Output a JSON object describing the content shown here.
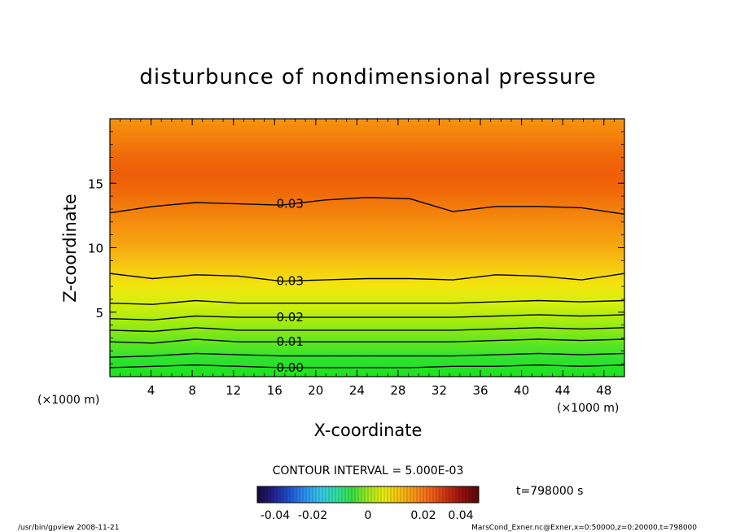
{
  "chart_data": {
    "type": "heatmap",
    "title": "disturbunce of nondimensional pressure",
    "xlabel": "X-coordinate",
    "ylabel": "Z-coordinate",
    "x_unit": "(×1000 m)",
    "y_unit": "(×1000 m)",
    "xlim": [
      0,
      50
    ],
    "ylim": [
      0,
      20
    ],
    "x_ticks": [
      4,
      8,
      12,
      16,
      20,
      24,
      28,
      32,
      36,
      40,
      44,
      48
    ],
    "y_ticks": [
      5,
      10,
      15
    ],
    "contour_interval_text": "CONTOUR INTERVAL = 5.000E-03",
    "contour_labels": [
      {
        "value": "0.00",
        "x": 17.5,
        "z": 0.7
      },
      {
        "value": "0.01",
        "x": 17.5,
        "z": 2.7
      },
      {
        "value": "0.02",
        "x": 17.5,
        "z": 4.6
      },
      {
        "value": "0.03",
        "x": 17.5,
        "z": 7.4
      },
      {
        "value": "0.03",
        "x": 17.5,
        "z": 13.4
      }
    ],
    "contour_lines": [
      {
        "level": 0.0,
        "z": [
          0.7,
          0.8,
          0.9,
          0.8,
          0.7,
          0.7,
          0.7,
          0.7,
          0.8,
          0.8,
          0.9,
          0.8,
          0.9
        ]
      },
      {
        "level": 0.005,
        "z": [
          1.5,
          1.6,
          1.8,
          1.7,
          1.6,
          1.6,
          1.6,
          1.6,
          1.6,
          1.7,
          1.8,
          1.7,
          1.8
        ]
      },
      {
        "level": 0.01,
        "z": [
          2.7,
          2.6,
          2.9,
          2.7,
          2.7,
          2.7,
          2.7,
          2.7,
          2.7,
          2.8,
          2.9,
          2.8,
          2.9
        ]
      },
      {
        "level": 0.015,
        "z": [
          3.6,
          3.5,
          3.8,
          3.6,
          3.6,
          3.6,
          3.6,
          3.6,
          3.6,
          3.7,
          3.8,
          3.7,
          3.8
        ]
      },
      {
        "level": 0.02,
        "z": [
          4.5,
          4.4,
          4.7,
          4.6,
          4.6,
          4.6,
          4.6,
          4.6,
          4.6,
          4.7,
          4.8,
          4.7,
          4.8
        ]
      },
      {
        "level": 0.025,
        "z": [
          5.7,
          5.6,
          5.9,
          5.7,
          5.7,
          5.7,
          5.7,
          5.7,
          5.7,
          5.8,
          5.9,
          5.8,
          5.9
        ]
      },
      {
        "level": 0.03,
        "z": [
          8.0,
          7.6,
          7.9,
          7.8,
          7.4,
          7.5,
          7.6,
          7.6,
          7.5,
          7.9,
          7.8,
          7.5,
          8.0
        ]
      },
      {
        "level": 0.03,
        "z": [
          12.7,
          13.2,
          13.5,
          13.4,
          13.3,
          13.7,
          13.9,
          13.8,
          12.8,
          13.2,
          13.2,
          13.1,
          12.6
        ]
      }
    ],
    "color_scale": {
      "min": -0.04,
      "max": 0.04,
      "tick_labels": [
        "-0.04",
        "-0.02",
        "0",
        "0.02",
        "0.04"
      ],
      "tick_values": [
        -0.04,
        -0.02,
        0,
        0.02,
        0.04
      ],
      "colors": [
        "#1a0a3a",
        "#22208a",
        "#2050d0",
        "#2c8ff0",
        "#34c8e8",
        "#2ee0a0",
        "#38e040",
        "#a0e820",
        "#e6ee10",
        "#f6c010",
        "#f89018",
        "#f06018",
        "#c83010",
        "#901010",
        "#5a0808"
      ]
    },
    "field_colors": [
      "#1ce31c",
      "#2fe22f",
      "#6ae61d",
      "#a5ec10",
      "#d6ef0e",
      "#f3e40e",
      "#f6c811",
      "#f6aa12",
      "#f6940f",
      "#f3800c",
      "#f06a0a",
      "#ef5d08",
      "#f06a0a",
      "#f3800c",
      "#f6940f"
    ],
    "time_label": "t=798000 s"
  },
  "footer": {
    "left": "/usr/bin/gpview   2008-11-21",
    "right": "MarsCond_Exner.nc@Exner,x=0:50000,z=0:20000,t=798000"
  }
}
